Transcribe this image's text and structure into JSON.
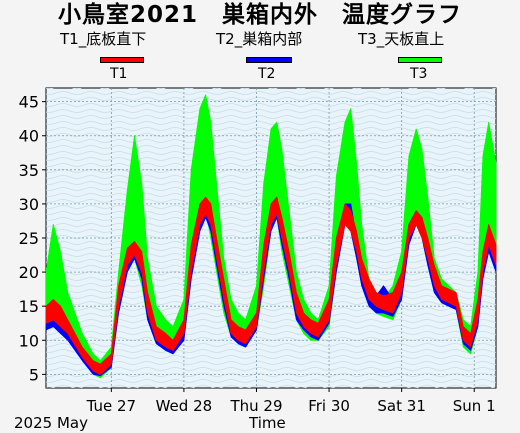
{
  "chart_data": {
    "type": "line",
    "title": "小鳥室2021　巣箱内外　温度グラフ",
    "xlabel": "Time",
    "ylabel": "",
    "ylim": [
      3,
      47
    ],
    "yticks": [
      5,
      10,
      15,
      20,
      25,
      30,
      35,
      40,
      45
    ],
    "x_range_days": [
      26.1,
      32.3
    ],
    "x_ticks": [
      {
        "day": 27,
        "label": "Tue 27"
      },
      {
        "day": 28,
        "label": "Wed 28"
      },
      {
        "day": 29,
        "label": "Thu 29"
      },
      {
        "day": 30,
        "label": "Fri 30"
      },
      {
        "day": 31,
        "label": "Sat 31"
      },
      {
        "day": 32,
        "label": "Sun 1"
      }
    ],
    "date_label": "2025 May",
    "grid": true,
    "legend_position": "top",
    "series": [
      {
        "name": "T1_底板直下",
        "short": "T1",
        "color": "#ff0000",
        "x": [
          26.1,
          26.2,
          26.3,
          26.4,
          26.6,
          26.75,
          26.85,
          27.0,
          27.1,
          27.22,
          27.32,
          27.42,
          27.5,
          27.62,
          27.75,
          27.85,
          28.0,
          28.1,
          28.22,
          28.3,
          28.37,
          28.45,
          28.55,
          28.65,
          28.75,
          28.85,
          29.0,
          29.1,
          29.2,
          29.28,
          29.35,
          29.45,
          29.55,
          29.65,
          29.75,
          29.85,
          30.0,
          30.1,
          30.22,
          30.3,
          30.38,
          30.45,
          30.55,
          30.65,
          30.75,
          30.88,
          31.0,
          31.1,
          31.2,
          31.28,
          31.36,
          31.45,
          31.55,
          31.65,
          31.75,
          31.85,
          31.95,
          32.05,
          32.12,
          32.2,
          32.3
        ],
        "lo": [
          12.5,
          13,
          12,
          11,
          7.5,
          5.5,
          5,
          6.5,
          15,
          21,
          22.5,
          20,
          14,
          10,
          9,
          8.5,
          11,
          20,
          27,
          28.5,
          27,
          22,
          16,
          11,
          10,
          9.5,
          12,
          20,
          27,
          28.5,
          25,
          20,
          14,
          12,
          11,
          10.5,
          13,
          21,
          27,
          26,
          23,
          19,
          16,
          15,
          14.5,
          14,
          17,
          25,
          27,
          25,
          22,
          18,
          16,
          15.5,
          15,
          10,
          9,
          13,
          20,
          24,
          21
        ],
        "hi": [
          15,
          16,
          15,
          13,
          9,
          7,
          6.5,
          8,
          18,
          23.5,
          24.5,
          23,
          17,
          12,
          11,
          10,
          13,
          24,
          30,
          31,
          30,
          25,
          19,
          13,
          12,
          11.5,
          14,
          24,
          30,
          31,
          28,
          23,
          17,
          14,
          13,
          12.5,
          16,
          25,
          30,
          29,
          26,
          22,
          19,
          17,
          16.5,
          17,
          20,
          27,
          29,
          28,
          25,
          21,
          18,
          17.5,
          17,
          12,
          11,
          16,
          23,
          27,
          24
        ]
      },
      {
        "name": "T2_巣箱内部",
        "short": "T2",
        "color": "#0000ff",
        "x": [
          26.1,
          26.2,
          26.3,
          26.4,
          26.6,
          26.75,
          26.85,
          27.0,
          27.1,
          27.22,
          27.32,
          27.42,
          27.5,
          27.62,
          27.75,
          27.85,
          28.0,
          28.1,
          28.22,
          28.3,
          28.37,
          28.45,
          28.55,
          28.65,
          28.75,
          28.85,
          29.0,
          29.1,
          29.2,
          29.28,
          29.35,
          29.45,
          29.55,
          29.65,
          29.75,
          29.85,
          30.0,
          30.1,
          30.22,
          30.3,
          30.38,
          30.45,
          30.55,
          30.65,
          30.75,
          30.88,
          31.0,
          31.1,
          31.2,
          31.28,
          31.36,
          31.45,
          31.55,
          31.65,
          31.75,
          31.85,
          31.95,
          32.05,
          32.12,
          32.2,
          32.3
        ],
        "lo": [
          11.5,
          12,
          11,
          10,
          7,
          5,
          4.8,
          6,
          14,
          20,
          22,
          19,
          13,
          9.5,
          8.5,
          8,
          10,
          19,
          26,
          28,
          26,
          21,
          15,
          10.5,
          9.5,
          9,
          11.5,
          19,
          26,
          28,
          24,
          19,
          13,
          11.5,
          10.5,
          10,
          12.5,
          20,
          27,
          26,
          22,
          18,
          15,
          14,
          14,
          13.5,
          16,
          24,
          27,
          25,
          21,
          17,
          15.5,
          15,
          14.5,
          9.5,
          8.5,
          12,
          19,
          23,
          20
        ],
        "hi": [
          14,
          15,
          14,
          12,
          8.5,
          6.5,
          6,
          7.5,
          17,
          23,
          24,
          22,
          16,
          11.5,
          10.5,
          9.5,
          12.5,
          23,
          29.5,
          31,
          29,
          24,
          18,
          12.5,
          11.5,
          11,
          13.5,
          23,
          29.5,
          31,
          27,
          22,
          16,
          13.5,
          12.5,
          12,
          15.5,
          24,
          30,
          30,
          25,
          21,
          18,
          16.5,
          18,
          16,
          19,
          27,
          29,
          28,
          24,
          20,
          17.5,
          17,
          16.5,
          11.5,
          10.5,
          15,
          22,
          26,
          23
        ]
      },
      {
        "name": "T3_天板直上",
        "short": "T3",
        "color": "#00ff00",
        "x": [
          26.1,
          26.2,
          26.3,
          26.4,
          26.6,
          26.75,
          26.85,
          27.0,
          27.1,
          27.22,
          27.32,
          27.42,
          27.5,
          27.62,
          27.75,
          27.85,
          28.0,
          28.1,
          28.22,
          28.3,
          28.37,
          28.45,
          28.55,
          28.65,
          28.75,
          28.85,
          29.0,
          29.1,
          29.2,
          29.28,
          29.35,
          29.45,
          29.55,
          29.65,
          29.75,
          29.85,
          30.0,
          30.1,
          30.22,
          30.3,
          30.38,
          30.45,
          30.55,
          30.65,
          30.75,
          30.88,
          31.0,
          31.1,
          31.2,
          31.28,
          31.36,
          31.45,
          31.55,
          31.65,
          31.75,
          31.85,
          31.95,
          32.05,
          32.12,
          32.2,
          32.3
        ],
        "lo": [
          12,
          14,
          13,
          11,
          7.5,
          5,
          4.5,
          6,
          14,
          20,
          22,
          18,
          13,
          9.5,
          8.5,
          8,
          10,
          19,
          27,
          29,
          25,
          20,
          14,
          10.5,
          9.5,
          9,
          11.5,
          18,
          26,
          28,
          23,
          18,
          13,
          11,
          10,
          10,
          12,
          20,
          27,
          26,
          22,
          18,
          15,
          14,
          13.5,
          13,
          16,
          24,
          27,
          25,
          21,
          17,
          15.5,
          15,
          14.5,
          9,
          8,
          12,
          20,
          24,
          20
        ],
        "hi": [
          20,
          27,
          23,
          17,
          11,
          8,
          7,
          9,
          20,
          32,
          40,
          33,
          22,
          15,
          13,
          12,
          16,
          35,
          44,
          46,
          42,
          33,
          22,
          16,
          14,
          13,
          18,
          33,
          41,
          42,
          38,
          29,
          20,
          16,
          14,
          13,
          18,
          34,
          42,
          44,
          36,
          27,
          19,
          17,
          16,
          18,
          23,
          37,
          41,
          38,
          31,
          22,
          19,
          18,
          17,
          13,
          12,
          20,
          37,
          42,
          36
        ]
      }
    ]
  }
}
